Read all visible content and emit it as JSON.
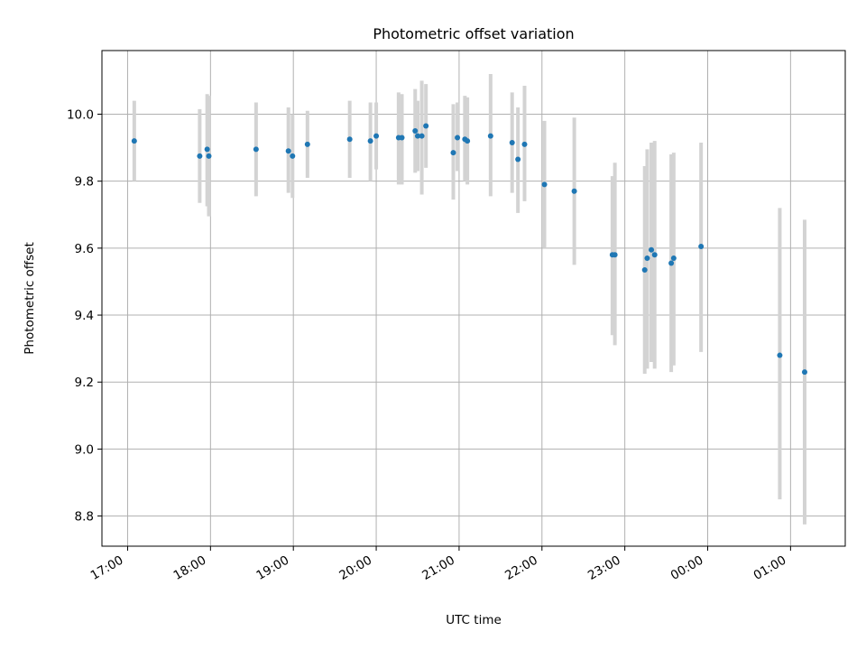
{
  "chart_data": {
    "type": "scatter",
    "title": "Photometric offset variation",
    "xlabel": "UTC time",
    "ylabel": "Photometric offset",
    "x_unit": "hours (UTC), 24–26 denote the following day",
    "xlim": [
      16.69,
      25.66
    ],
    "ylim": [
      8.71,
      10.19
    ],
    "xticks": [
      17,
      18,
      19,
      20,
      21,
      22,
      23,
      24,
      25
    ],
    "xtick_labels": [
      "17:00",
      "18:00",
      "19:00",
      "20:00",
      "21:00",
      "22:00",
      "23:00",
      "00:00",
      "01:00"
    ],
    "yticks": [
      8.8,
      9.0,
      9.2,
      9.4,
      9.6,
      9.8,
      10.0
    ],
    "ytick_labels": [
      "8.8",
      "9.0",
      "9.2",
      "9.4",
      "9.6",
      "9.8",
      "10.0"
    ],
    "grid": true,
    "legend": "none",
    "colors": {
      "point": "#1f77b4",
      "errorbar": "#d3d3d3",
      "grid": "#b0b0b0"
    },
    "points": [
      {
        "x": 17.08,
        "y": 9.92,
        "ylo": 9.8,
        "yhi": 10.04
      },
      {
        "x": 17.87,
        "y": 9.875,
        "ylo": 9.735,
        "yhi": 10.015
      },
      {
        "x": 17.96,
        "y": 9.895,
        "ylo": 9.725,
        "yhi": 10.06
      },
      {
        "x": 17.98,
        "y": 9.875,
        "ylo": 9.695,
        "yhi": 10.055
      },
      {
        "x": 18.55,
        "y": 9.895,
        "ylo": 9.755,
        "yhi": 10.035
      },
      {
        "x": 18.94,
        "y": 9.89,
        "ylo": 9.765,
        "yhi": 10.02
      },
      {
        "x": 18.99,
        "y": 9.875,
        "ylo": 9.75,
        "yhi": 10.0
      },
      {
        "x": 19.17,
        "y": 9.91,
        "ylo": 9.81,
        "yhi": 10.01
      },
      {
        "x": 19.68,
        "y": 9.925,
        "ylo": 9.81,
        "yhi": 10.04
      },
      {
        "x": 19.93,
        "y": 9.92,
        "ylo": 9.8,
        "yhi": 10.035
      },
      {
        "x": 20.0,
        "y": 9.935,
        "ylo": 9.835,
        "yhi": 10.035
      },
      {
        "x": 20.27,
        "y": 9.93,
        "ylo": 9.79,
        "yhi": 10.065
      },
      {
        "x": 20.31,
        "y": 9.93,
        "ylo": 9.79,
        "yhi": 10.06
      },
      {
        "x": 20.47,
        "y": 9.95,
        "ylo": 9.825,
        "yhi": 10.075
      },
      {
        "x": 20.5,
        "y": 9.935,
        "ylo": 9.83,
        "yhi": 10.04
      },
      {
        "x": 20.55,
        "y": 9.935,
        "ylo": 9.76,
        "yhi": 10.1
      },
      {
        "x": 20.6,
        "y": 9.965,
        "ylo": 9.84,
        "yhi": 10.09
      },
      {
        "x": 20.93,
        "y": 9.885,
        "ylo": 9.745,
        "yhi": 10.03
      },
      {
        "x": 20.98,
        "y": 9.93,
        "ylo": 9.83,
        "yhi": 10.035
      },
      {
        "x": 21.07,
        "y": 9.925,
        "ylo": 9.8,
        "yhi": 10.055
      },
      {
        "x": 21.1,
        "y": 9.92,
        "ylo": 9.79,
        "yhi": 10.05
      },
      {
        "x": 21.38,
        "y": 9.935,
        "ylo": 9.755,
        "yhi": 10.12
      },
      {
        "x": 21.64,
        "y": 9.915,
        "ylo": 9.765,
        "yhi": 10.065
      },
      {
        "x": 21.71,
        "y": 9.865,
        "ylo": 9.705,
        "yhi": 10.02
      },
      {
        "x": 21.79,
        "y": 9.91,
        "ylo": 9.74,
        "yhi": 10.085
      },
      {
        "x": 22.03,
        "y": 9.79,
        "ylo": 9.6,
        "yhi": 9.98
      },
      {
        "x": 22.39,
        "y": 9.77,
        "ylo": 9.55,
        "yhi": 9.99
      },
      {
        "x": 22.85,
        "y": 9.58,
        "ylo": 9.34,
        "yhi": 9.815
      },
      {
        "x": 22.88,
        "y": 9.58,
        "ylo": 9.31,
        "yhi": 9.855
      },
      {
        "x": 23.24,
        "y": 9.535,
        "ylo": 9.225,
        "yhi": 9.845
      },
      {
        "x": 23.27,
        "y": 9.57,
        "ylo": 9.24,
        "yhi": 9.895
      },
      {
        "x": 23.32,
        "y": 9.595,
        "ylo": 9.26,
        "yhi": 9.915
      },
      {
        "x": 23.36,
        "y": 9.58,
        "ylo": 9.24,
        "yhi": 9.92
      },
      {
        "x": 23.56,
        "y": 9.555,
        "ylo": 9.23,
        "yhi": 9.88
      },
      {
        "x": 23.59,
        "y": 9.57,
        "ylo": 9.25,
        "yhi": 9.885
      },
      {
        "x": 23.92,
        "y": 9.605,
        "ylo": 9.29,
        "yhi": 9.915
      },
      {
        "x": 24.87,
        "y": 9.28,
        "ylo": 8.85,
        "yhi": 9.72
      },
      {
        "x": 25.17,
        "y": 9.23,
        "ylo": 8.775,
        "yhi": 9.685
      }
    ]
  }
}
